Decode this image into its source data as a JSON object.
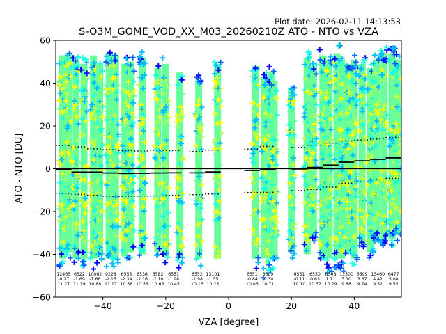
{
  "chart_data": {
    "type": "scatter",
    "title": "S-O3M_GOME_VOD_XX_M03_20260210Z ATO - NTO vs VZA",
    "plot_date": "Plot date: 2026-02-11 14:13:53",
    "xlabel": "VZA [degree]",
    "ylabel": "ATO - NTO [DU]",
    "xlim": [
      -55,
      55
    ],
    "ylim": [
      -60,
      60
    ],
    "xticks": [
      -40,
      -20,
      0,
      20,
      40
    ],
    "yticks": [
      -60,
      -40,
      -20,
      0,
      20,
      40,
      60
    ],
    "grid": false,
    "colors": {
      "scatter_palette": [
        "#0000ff",
        "#0066ff",
        "#00bfff",
        "#19ffe0",
        "#66ff99",
        "#a6ff5a",
        "#e6ff1a",
        "#ffff00"
      ],
      "dense_column": "#66ff99",
      "median_line": "#000000",
      "sigma_line": "#000000"
    },
    "bins": [
      {
        "x": -52.5,
        "count": "12465",
        "mean": "-0.27",
        "std": "11.27",
        "p16": -11.5,
        "median": -0.2,
        "p84": 10.8
      },
      {
        "x": -47.5,
        "count": "6322",
        "mean": "-1.69",
        "std": "11.19",
        "p16": -12.0,
        "median": -1.6,
        "p84": 10.2
      },
      {
        "x": -42.5,
        "count": "10062",
        "mean": "-1.66",
        "std": "10.88",
        "p16": -12.4,
        "median": -1.6,
        "p84": 9.3
      },
      {
        "x": -37.5,
        "count": "9228",
        "mean": "-2.15",
        "std": "11.17",
        "p16": -12.8,
        "median": -2.0,
        "p84": 8.9
      },
      {
        "x": -32.5,
        "count": "6555",
        "mean": "-2.34",
        "std": "10.58",
        "p16": -12.9,
        "median": -2.2,
        "p84": 8.5
      },
      {
        "x": -27.5,
        "count": "6536",
        "mean": "-2.16",
        "std": "10.55",
        "p16": -12.8,
        "median": -2.1,
        "p84": 8.3
      },
      {
        "x": -22.5,
        "count": "6582",
        "mean": "-2.10",
        "std": "10.66",
        "p16": -12.7,
        "median": -2.0,
        "p84": 8.6
      },
      {
        "x": -17.5,
        "count": "6551",
        "mean": "-1.98",
        "std": "10.45",
        "p16": -12.4,
        "median": -1.9,
        "p84": 8.5
      },
      {
        "x": -10.0,
        "count": "6552",
        "mean": "-1.98",
        "std": "10.16",
        "p16": -12.1,
        "median": -1.9,
        "p84": 8.1
      },
      {
        "x": -5.0,
        "count": "13101",
        "mean": "-1.55",
        "std": "10.25",
        "p16": -11.8,
        "median": -1.5,
        "p84": 8.7
      },
      {
        "x": 7.5,
        "count": "6551",
        "mean": "-0.84",
        "std": "10.06",
        "p16": -11.1,
        "median": -0.8,
        "p84": 9.2
      },
      {
        "x": 12.5,
        "count": "6609",
        "mean": "-0.30",
        "std": "10.71",
        "p16": -11.0,
        "median": -0.3,
        "p84": 10.4
      },
      {
        "x": 22.5,
        "count": "6551",
        "mean": "-0.11",
        "std": "10.10",
        "p16": -10.2,
        "median": -0.1,
        "p84": 10.0
      },
      {
        "x": 27.5,
        "count": "6550",
        "mean": "0.63",
        "std": "10.37",
        "p16": -9.7,
        "median": 0.6,
        "p84": 11.0
      },
      {
        "x": 32.5,
        "count": "6548",
        "mean": "1.71",
        "std": "10.29",
        "p16": -8.6,
        "median": 1.7,
        "p84": 12.0
      },
      {
        "x": 37.5,
        "count": "11500",
        "mean": "3.10",
        "std": "9.88",
        "p16": -6.8,
        "median": 3.1,
        "p84": 13.0
      },
      {
        "x": 42.5,
        "count": "6699",
        "mean": "3.67",
        "std": "9.74",
        "p16": -6.1,
        "median": 3.7,
        "p84": 13.4
      },
      {
        "x": 47.5,
        "count": "13460",
        "mean": "4.42",
        "std": "9.52",
        "p16": -5.1,
        "median": 4.4,
        "p84": 13.9
      },
      {
        "x": 52.5,
        "count": "6477",
        "mean": "5.08",
        "std": "9.55",
        "p16": -4.5,
        "median": 5.1,
        "p84": 14.6
      }
    ],
    "scatter_columns": [
      {
        "x": -53.0,
        "lo": -46,
        "hi": 56
      },
      {
        "x": -51.0,
        "lo": -42,
        "hi": 58
      },
      {
        "x": -48.5,
        "lo": -45,
        "hi": 54
      },
      {
        "x": -46.0,
        "lo": -46,
        "hi": 52
      },
      {
        "x": -43.0,
        "lo": -48,
        "hi": 56
      },
      {
        "x": -41.0,
        "lo": -44,
        "hi": 52
      },
      {
        "x": -38.0,
        "lo": -46,
        "hi": 57
      },
      {
        "x": -36.0,
        "lo": -46,
        "hi": 56
      },
      {
        "x": -33.0,
        "lo": -44,
        "hi": 52
      },
      {
        "x": -31.0,
        "lo": -42,
        "hi": 53
      },
      {
        "x": -27.5,
        "lo": -43,
        "hi": 55
      },
      {
        "x": -22.5,
        "lo": -42,
        "hi": 50
      },
      {
        "x": -20.0,
        "lo": -44,
        "hi": 52
      },
      {
        "x": -15.5,
        "lo": -47,
        "hi": 48
      },
      {
        "x": -9.5,
        "lo": -46,
        "hi": 44
      },
      {
        "x": -3.5,
        "lo": -50,
        "hi": 52
      },
      {
        "x": 8.5,
        "lo": -47,
        "hi": 51
      },
      {
        "x": 11.5,
        "lo": -53,
        "hi": 46
      },
      {
        "x": 13.5,
        "lo": -49,
        "hi": 48
      },
      {
        "x": 14.5,
        "lo": -45,
        "hi": 44
      },
      {
        "x": 20.0,
        "lo": -42,
        "hi": 41
      },
      {
        "x": 25.0,
        "lo": -43,
        "hi": 55
      },
      {
        "x": 27.0,
        "lo": -36,
        "hi": 51
      },
      {
        "x": 30.0,
        "lo": -47,
        "hi": 56
      },
      {
        "x": 32.0,
        "lo": -49,
        "hi": 54
      },
      {
        "x": 34.5,
        "lo": -47,
        "hi": 58
      },
      {
        "x": 36.0,
        "lo": -48,
        "hi": 54
      },
      {
        "x": 38.0,
        "lo": -42,
        "hi": 52
      },
      {
        "x": 40.0,
        "lo": -45,
        "hi": 54
      },
      {
        "x": 42.5,
        "lo": -38,
        "hi": 52
      },
      {
        "x": 45.0,
        "lo": -42,
        "hi": 50
      },
      {
        "x": 47.0,
        "lo": -35,
        "hi": 54
      },
      {
        "x": 49.5,
        "lo": -38,
        "hi": 57
      },
      {
        "x": 52.0,
        "lo": -36,
        "hi": 58
      },
      {
        "x": 54.0,
        "lo": -34,
        "hi": 54
      }
    ]
  }
}
